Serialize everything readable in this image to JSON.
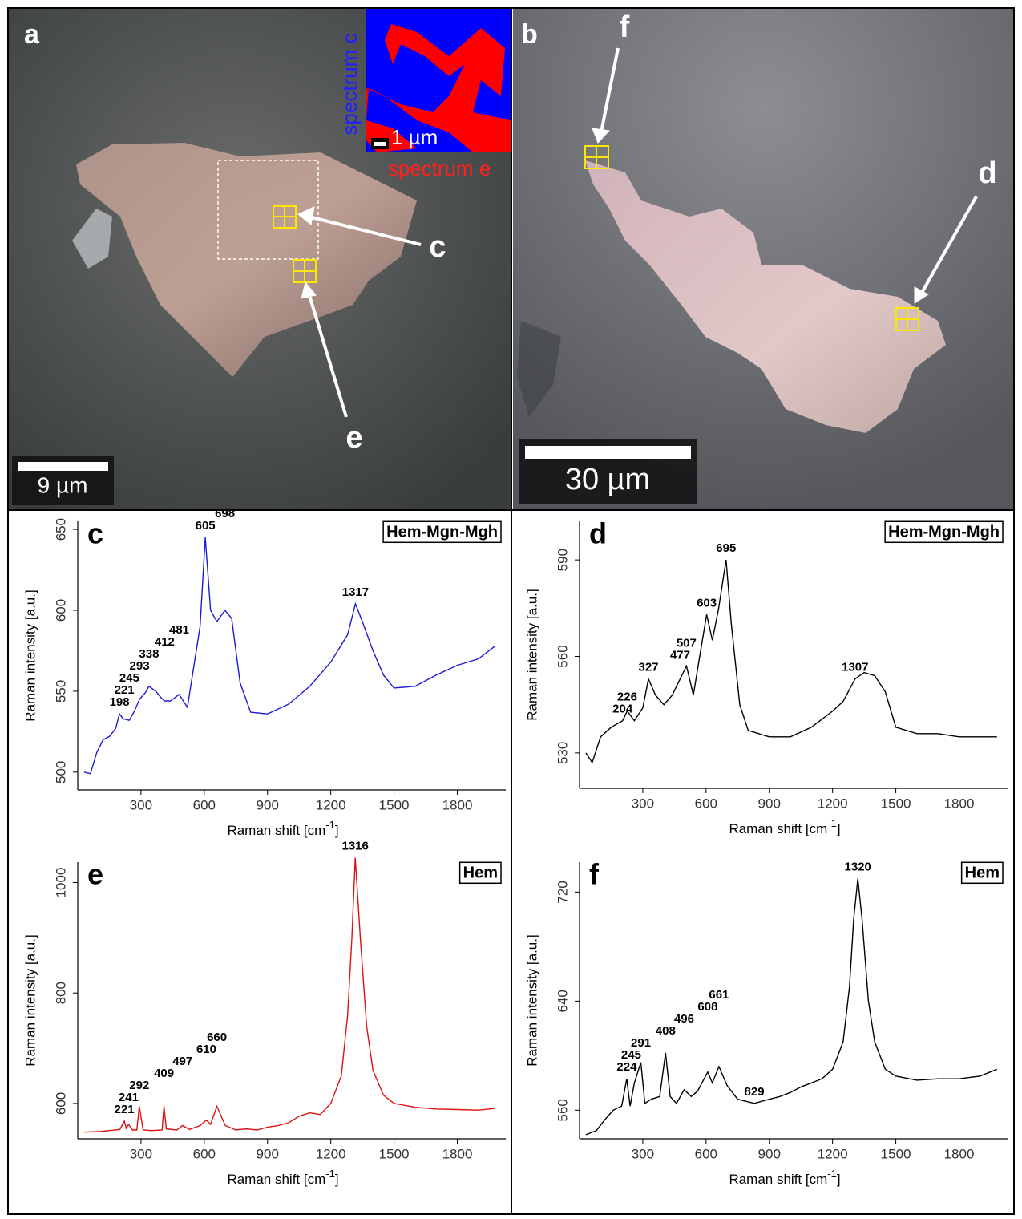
{
  "panel_a": {
    "label": "a",
    "scale_bar": "9 µm",
    "inset_scale_bar": "1 µm",
    "inset_legend": [
      "spectrum c",
      "spectrum e"
    ],
    "pointers": [
      "c",
      "e"
    ]
  },
  "panel_b": {
    "label": "b",
    "scale_bar": "30 µm",
    "pointers": [
      "f",
      "d"
    ]
  },
  "chart_data": [
    {
      "type": "line",
      "label": "c",
      "mineral": "Hem-Mgn-Mgh",
      "color": "#1c1cd4",
      "ylabel": "Raman intensity [a.u.]",
      "xlabel": {
        "text": "Raman shift [cm",
        "sup": "-1",
        "tail": "]"
      },
      "xlim": [
        0,
        2030
      ],
      "xticks": [
        300,
        600,
        900,
        1200,
        1500,
        1800
      ],
      "ylim": [
        489,
        655
      ],
      "yticks": [
        500,
        550,
        600,
        650
      ],
      "x": [
        30,
        60,
        90,
        120,
        150,
        180,
        198,
        215,
        245,
        270,
        293,
        320,
        338,
        370,
        395,
        412,
        440,
        481,
        520,
        550,
        580,
        605,
        630,
        660,
        698,
        730,
        770,
        820,
        900,
        1000,
        1100,
        1200,
        1280,
        1317,
        1350,
        1400,
        1450,
        1500,
        1600,
        1700,
        1800,
        1900,
        1980
      ],
      "values": [
        500,
        499,
        512,
        520,
        522,
        527,
        536,
        533,
        532,
        538,
        545,
        549,
        553,
        550,
        546,
        544,
        544,
        548,
        540,
        565,
        590,
        645,
        600,
        593,
        600,
        595,
        555,
        537,
        536,
        542,
        553,
        568,
        585,
        604,
        593,
        575,
        560,
        552,
        553,
        560,
        566,
        570,
        578
      ],
      "peaks": [
        198,
        221,
        245,
        293,
        338,
        412,
        481,
        605,
        698,
        1317
      ]
    },
    {
      "type": "line",
      "label": "d",
      "mineral": "Hem-Mgn-Mgh",
      "color": "#000000",
      "ylabel": "Raman intensity [a.u.]",
      "xlabel": {
        "text": "Raman shift [cm",
        "sup": "-1",
        "tail": "]"
      },
      "xlim": [
        0,
        2030
      ],
      "xticks": [
        300,
        600,
        900,
        1200,
        1500,
        1800
      ],
      "ylim": [
        519,
        602
      ],
      "yticks": [
        530,
        560,
        590
      ],
      "x": [
        30,
        60,
        100,
        150,
        204,
        226,
        260,
        300,
        327,
        360,
        400,
        440,
        477,
        507,
        540,
        570,
        603,
        630,
        660,
        695,
        720,
        760,
        800,
        900,
        1000,
        1100,
        1200,
        1250,
        1307,
        1350,
        1400,
        1450,
        1500,
        1600,
        1700,
        1800,
        1900,
        1980
      ],
      "values": [
        530,
        527,
        535,
        538,
        540,
        543,
        540,
        544,
        553,
        548,
        545,
        548,
        553,
        557,
        548,
        560,
        573,
        565,
        575,
        590,
        570,
        545,
        537,
        535,
        535,
        538,
        543,
        546,
        553,
        555,
        554,
        549,
        538,
        536,
        536,
        535,
        535,
        535
      ],
      "peaks": [
        204,
        226,
        327,
        477,
        507,
        603,
        695,
        1307
      ]
    },
    {
      "type": "line",
      "label": "e",
      "mineral": "Hem",
      "color": "#e01010",
      "ylabel": "Raman intensity [a.u.]",
      "xlabel": {
        "text": "Raman shift [cm",
        "sup": "-1",
        "tail": "]"
      },
      "xlim": [
        0,
        2030
      ],
      "xticks": [
        300,
        600,
        900,
        1200,
        1500,
        1800
      ],
      "ylim": [
        536,
        1037
      ],
      "yticks": [
        600,
        800,
        1000
      ],
      "x": [
        30,
        100,
        150,
        200,
        221,
        230,
        241,
        260,
        280,
        292,
        310,
        350,
        400,
        409,
        420,
        470,
        497,
        530,
        580,
        610,
        630,
        660,
        700,
        750,
        800,
        850,
        900,
        950,
        1000,
        1050,
        1100,
        1150,
        1200,
        1250,
        1280,
        1300,
        1316,
        1340,
        1370,
        1400,
        1450,
        1500,
        1600,
        1700,
        1800,
        1900,
        1980
      ],
      "values": [
        548,
        549,
        551,
        553,
        568,
        555,
        562,
        552,
        552,
        595,
        552,
        551,
        552,
        595,
        554,
        552,
        560,
        553,
        560,
        570,
        562,
        595,
        560,
        552,
        554,
        552,
        557,
        560,
        565,
        577,
        583,
        580,
        600,
        650,
        760,
        900,
        1045,
        900,
        740,
        660,
        615,
        600,
        593,
        590,
        589,
        588,
        591
      ],
      "peaks": [
        221,
        241,
        292,
        409,
        497,
        610,
        660,
        1316
      ]
    },
    {
      "type": "line",
      "label": "f",
      "mineral": "Hem",
      "color": "#000000",
      "ylabel": "Raman intensity [a.u.]",
      "xlabel": {
        "text": "Raman shift [cm",
        "sup": "-1",
        "tail": "]"
      },
      "xlim": [
        0,
        2030
      ],
      "xticks": [
        300,
        600,
        900,
        1200,
        1500,
        1800
      ],
      "ylim": [
        539,
        742
      ],
      "yticks": [
        560,
        640,
        720
      ],
      "x": [
        30,
        80,
        120,
        160,
        200,
        224,
        240,
        260,
        291,
        310,
        340,
        380,
        408,
        430,
        460,
        496,
        530,
        560,
        608,
        630,
        661,
        700,
        750,
        829,
        900,
        950,
        1000,
        1050,
        1100,
        1150,
        1200,
        1250,
        1280,
        1300,
        1320,
        1340,
        1370,
        1400,
        1450,
        1500,
        1600,
        1700,
        1800,
        1900,
        1980
      ],
      "values": [
        542,
        545,
        553,
        560,
        563,
        583,
        563,
        580,
        595,
        565,
        568,
        570,
        602,
        570,
        565,
        575,
        570,
        574,
        588,
        580,
        592,
        578,
        568,
        565,
        568,
        570,
        573,
        577,
        580,
        583,
        590,
        610,
        650,
        700,
        730,
        700,
        640,
        610,
        590,
        585,
        582,
        583,
        583,
        585,
        590
      ],
      "peaks": [
        224,
        245,
        291,
        408,
        496,
        608,
        661,
        829,
        1320
      ]
    }
  ]
}
